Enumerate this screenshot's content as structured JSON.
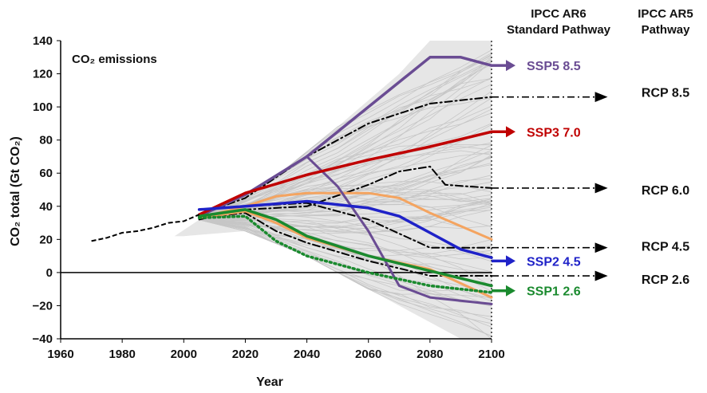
{
  "chart_data": {
    "type": "line",
    "title": "CO₂ emissions",
    "xlabel": "Year",
    "ylabel": "CO₂ total (Gt CO₂)",
    "xlim": [
      1960,
      2100
    ],
    "ylim": [
      -40,
      140
    ],
    "xticks": [
      1960,
      1980,
      2000,
      2020,
      2040,
      2060,
      2080,
      2100
    ],
    "yticks": [
      -40,
      -20,
      0,
      20,
      40,
      60,
      80,
      100,
      120,
      140
    ],
    "grid": false,
    "colors": {
      "ensemble": "#d4d4d4",
      "ssp5": "#6a4c93",
      "ssp3": "#c00000",
      "ssp2": "#1f22c8",
      "ssp1": "#1a8a2e",
      "orange": "#f4a460",
      "black": "#000000"
    },
    "headers": {
      "ar6_line1": "IPCC AR6",
      "ar6_line2": "Standard Pathway",
      "ar5_line1": "IPCC AR5",
      "ar5_line2": "Pathway"
    },
    "historical": {
      "x": [
        1970,
        1975,
        1980,
        1985,
        1990,
        1995,
        2000,
        2005
      ],
      "y": [
        19,
        21,
        24,
        25,
        27,
        30,
        31,
        35
      ]
    },
    "series": [
      {
        "name": "SSP5 8.5",
        "role": "ssp",
        "color": "#6a4c93",
        "x": [
          2005,
          2020,
          2040,
          2060,
          2080,
          2090,
          2100
        ],
        "y": [
          34,
          47,
          70,
          100,
          130,
          130,
          125
        ]
      },
      {
        "name": "SSP3 7.0",
        "role": "ssp",
        "color": "#c00000",
        "x": [
          2005,
          2020,
          2040,
          2060,
          2080,
          2100
        ],
        "y": [
          35,
          48,
          59,
          68,
          76,
          85
        ]
      },
      {
        "name": "SSP2 4.5",
        "role": "ssp",
        "color": "#1f22c8",
        "x": [
          2005,
          2020,
          2040,
          2060,
          2070,
          2080,
          2090,
          2100
        ],
        "y": [
          38,
          40,
          43,
          39,
          34,
          24,
          14,
          9
        ]
      },
      {
        "name": "SSP1 2.6",
        "role": "ssp",
        "color": "#1a8a2e",
        "x": [
          2005,
          2020,
          2030,
          2040,
          2060,
          2080,
          2100
        ],
        "y": [
          34,
          38,
          32,
          22,
          10,
          1,
          -8
        ]
      },
      {
        "name": "RCP 8.5",
        "role": "rcp",
        "x": [
          2005,
          2020,
          2040,
          2060,
          2080,
          2100
        ],
        "y": [
          35,
          45,
          70,
          90,
          102,
          106
        ]
      },
      {
        "name": "RCP 6.0",
        "role": "rcp",
        "x": [
          2005,
          2020,
          2040,
          2060,
          2070,
          2080,
          2085,
          2100
        ],
        "y": [
          32,
          38,
          40,
          53,
          61,
          64,
          53,
          51
        ]
      },
      {
        "name": "RCP 4.5",
        "role": "rcp",
        "x": [
          2005,
          2020,
          2040,
          2060,
          2080,
          2100
        ],
        "y": [
          33,
          40,
          42,
          32,
          15,
          15
        ]
      },
      {
        "name": "RCP 2.6",
        "role": "rcp",
        "x": [
          2005,
          2020,
          2030,
          2040,
          2060,
          2080,
          2100
        ],
        "y": [
          33,
          36,
          25,
          18,
          7,
          -2,
          -2
        ]
      },
      {
        "role": "extra",
        "color": "#f4a460",
        "x": [
          2005,
          2020,
          2030,
          2040,
          2060,
          2070,
          2080,
          2100
        ],
        "y": [
          33,
          40,
          46,
          48,
          48,
          45,
          36,
          20
        ]
      },
      {
        "role": "extra",
        "color": "#f4a460",
        "x": [
          2005,
          2020,
          2030,
          2040,
          2060,
          2080,
          2100
        ],
        "y": [
          33,
          37,
          30,
          21,
          10,
          2,
          -15
        ]
      },
      {
        "role": "extra",
        "color": "#6a4c93",
        "x": [
          2040,
          2050,
          2060,
          2070,
          2080,
          2100
        ],
        "y": [
          70,
          52,
          25,
          -8,
          -15,
          -19
        ]
      },
      {
        "role": "extra-dotted",
        "color": "#1a8a2e",
        "x": [
          2005,
          2020,
          2030,
          2040,
          2060,
          2080,
          2100
        ],
        "y": [
          33,
          34,
          19,
          10,
          0,
          -8,
          -12
        ]
      }
    ],
    "pathway_labels": [
      {
        "text": "SSP5 8.5",
        "color": "#6a4c93",
        "y": 125
      },
      {
        "text": "SSP3 7.0",
        "color": "#c00000",
        "y": 85
      },
      {
        "text": "SSP2 4.5",
        "color": "#1f22c8",
        "y": 7
      },
      {
        "text": "SSP1 2.6",
        "color": "#1a8a2e",
        "y": -11
      }
    ],
    "rcp_labels": [
      {
        "text": "RCP 8.5",
        "y": 109,
        "arrow_y": 106
      },
      {
        "text": "RCP 6.0",
        "y": 50,
        "arrow_y": 51
      },
      {
        "text": "RCP 4.5",
        "y": 16,
        "arrow_y": 15
      },
      {
        "text": "RCP 2.6",
        "y": -4,
        "arrow_y": -2
      }
    ]
  }
}
